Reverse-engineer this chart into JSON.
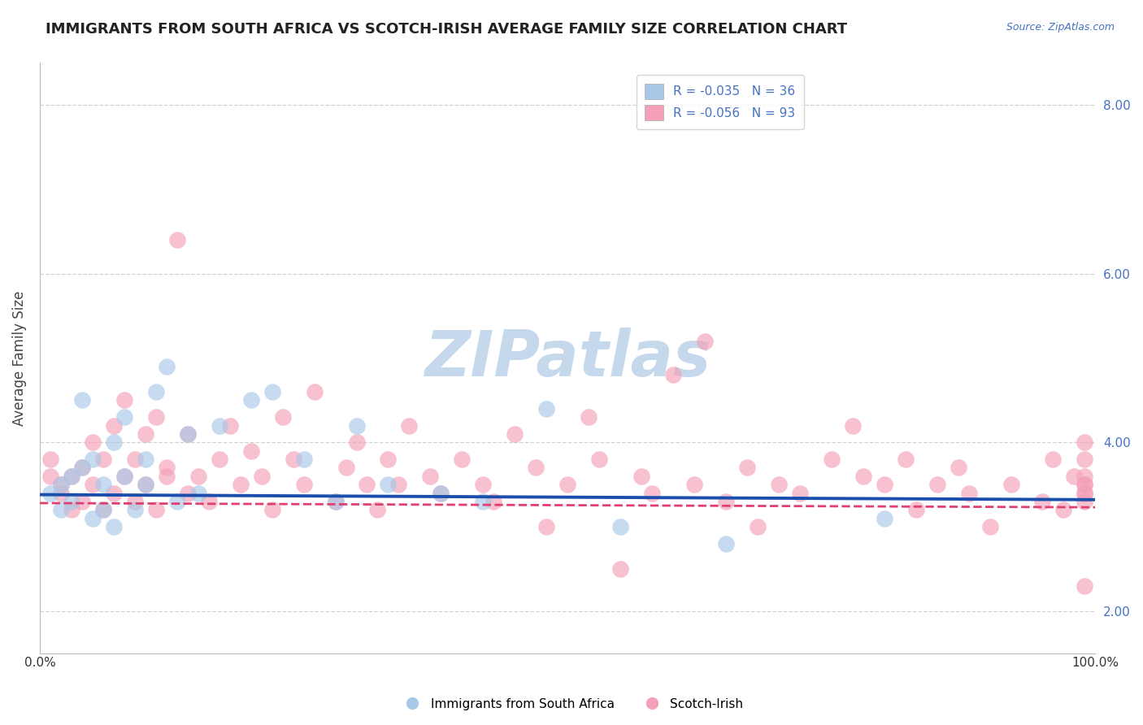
{
  "title": "IMMIGRANTS FROM SOUTH AFRICA VS SCOTCH-IRISH AVERAGE FAMILY SIZE CORRELATION CHART",
  "source": "Source: ZipAtlas.com",
  "ylabel": "Average Family Size",
  "xlim": [
    0.0,
    1.0
  ],
  "ylim": [
    1.5,
    8.5
  ],
  "yticks": [
    2.0,
    4.0,
    6.0,
    8.0
  ],
  "xticks": [
    0.0,
    1.0
  ],
  "xticklabels": [
    "0.0%",
    "100.0%"
  ],
  "blue_color": "#a8c8e8",
  "blue_line_color": "#1a4fad",
  "pink_color": "#f4a0b8",
  "pink_line_color": "#e04070",
  "legend_blue_label": "R = -0.035   N = 36",
  "legend_pink_label": "R = -0.056   N = 93",
  "blue_intercept": 3.38,
  "blue_slope": -0.06,
  "pink_intercept": 3.28,
  "pink_slope": -0.05,
  "blue_scatter_x": [
    0.01,
    0.02,
    0.02,
    0.03,
    0.03,
    0.04,
    0.04,
    0.05,
    0.05,
    0.06,
    0.06,
    0.07,
    0.07,
    0.08,
    0.08,
    0.09,
    0.1,
    0.1,
    0.11,
    0.12,
    0.13,
    0.14,
    0.15,
    0.17,
    0.2,
    0.22,
    0.25,
    0.28,
    0.3,
    0.33,
    0.38,
    0.42,
    0.48,
    0.55,
    0.65,
    0.8
  ],
  "blue_scatter_y": [
    3.4,
    3.5,
    3.2,
    3.6,
    3.3,
    4.5,
    3.7,
    3.1,
    3.8,
    3.2,
    3.5,
    3.0,
    4.0,
    4.3,
    3.6,
    3.2,
    3.5,
    3.8,
    4.6,
    4.9,
    3.3,
    4.1,
    3.4,
    4.2,
    4.5,
    4.6,
    3.8,
    3.3,
    4.2,
    3.5,
    3.4,
    3.3,
    4.4,
    3.0,
    2.8,
    3.1
  ],
  "pink_scatter_x": [
    0.01,
    0.01,
    0.02,
    0.02,
    0.03,
    0.03,
    0.04,
    0.04,
    0.05,
    0.05,
    0.06,
    0.06,
    0.07,
    0.07,
    0.08,
    0.08,
    0.09,
    0.09,
    0.1,
    0.1,
    0.11,
    0.11,
    0.12,
    0.12,
    0.13,
    0.14,
    0.14,
    0.15,
    0.16,
    0.17,
    0.18,
    0.19,
    0.2,
    0.21,
    0.22,
    0.23,
    0.24,
    0.25,
    0.26,
    0.28,
    0.29,
    0.3,
    0.31,
    0.32,
    0.33,
    0.34,
    0.35,
    0.37,
    0.38,
    0.4,
    0.42,
    0.43,
    0.45,
    0.47,
    0.48,
    0.5,
    0.52,
    0.53,
    0.55,
    0.57,
    0.58,
    0.6,
    0.62,
    0.63,
    0.65,
    0.67,
    0.68,
    0.7,
    0.72,
    0.75,
    0.77,
    0.78,
    0.8,
    0.82,
    0.83,
    0.85,
    0.87,
    0.88,
    0.9,
    0.92,
    0.95,
    0.96,
    0.97,
    0.98,
    0.99,
    0.99,
    0.99,
    0.99,
    0.99,
    0.99,
    0.99,
    0.99,
    0.99
  ],
  "pink_scatter_y": [
    3.6,
    3.8,
    3.4,
    3.5,
    3.2,
    3.6,
    3.7,
    3.3,
    4.0,
    3.5,
    3.8,
    3.2,
    4.2,
    3.4,
    3.6,
    4.5,
    3.3,
    3.8,
    4.1,
    3.5,
    3.2,
    4.3,
    3.6,
    3.7,
    6.4,
    3.4,
    4.1,
    3.6,
    3.3,
    3.8,
    4.2,
    3.5,
    3.9,
    3.6,
    3.2,
    4.3,
    3.8,
    3.5,
    4.6,
    3.3,
    3.7,
    4.0,
    3.5,
    3.2,
    3.8,
    3.5,
    4.2,
    3.6,
    3.4,
    3.8,
    3.5,
    3.3,
    4.1,
    3.7,
    3.0,
    3.5,
    4.3,
    3.8,
    2.5,
    3.6,
    3.4,
    4.8,
    3.5,
    5.2,
    3.3,
    3.7,
    3.0,
    3.5,
    3.4,
    3.8,
    4.2,
    3.6,
    3.5,
    3.8,
    3.2,
    3.5,
    3.7,
    3.4,
    3.0,
    3.5,
    3.3,
    3.8,
    3.2,
    3.6,
    3.4,
    3.5,
    4.0,
    3.3,
    3.6,
    3.8,
    3.5,
    2.3,
    3.4
  ],
  "watermark_text": "ZIPatlas",
  "watermark_color": "#c5d8ec",
  "background_color": "#ffffff",
  "grid_color": "#cccccc",
  "title_color": "#222222",
  "axis_label_color": "#444444",
  "tick_color_blue": "#4472c4",
  "source_color": "#4472c4",
  "title_fontsize": 13,
  "axis_label_fontsize": 12,
  "tick_fontsize": 11,
  "legend_fontsize": 11
}
